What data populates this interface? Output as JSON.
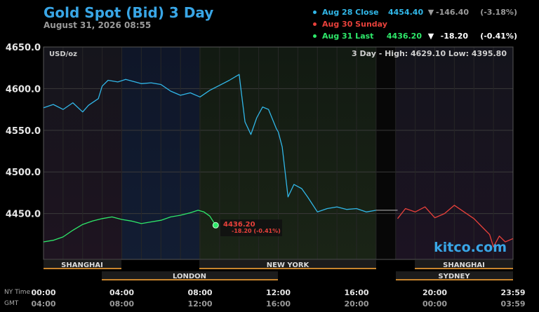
{
  "header": {
    "title": "Gold Spot (Bid) 3 Day",
    "timestamp": "August 31, 2026 08:55"
  },
  "legend": [
    {
      "label": "Aug 28 Close",
      "value": "4454.40",
      "arrow": "▼",
      "change": "-146.40",
      "pct": "(-3.18%)",
      "color": "#31b7e8",
      "text_color": "#31b7e8",
      "num_color": "#9a9a9a"
    },
    {
      "label": "Aug 30 Sunday",
      "value": "",
      "arrow": "",
      "change": "",
      "pct": "",
      "color": "#e8413b",
      "text_color": "#e8413b",
      "num_color": "#9a9a9a"
    },
    {
      "label": "Aug 31 Last",
      "value": "4436.20",
      "arrow": "▼",
      "change": "-18.20",
      "pct": "(-0.41%)",
      "color": "#2ee86a",
      "text_color": "#2ee86a",
      "num_color": "#ffffff"
    }
  ],
  "plot": {
    "unit_label": "USD/oz",
    "range_text": "3 Day - High: 4629.10  Low: 4395.80",
    "watermark": "kitco.com",
    "last_value_label": "4436.20",
    "last_change_label": "-18.20 (-0.41%)"
  },
  "sessions_row1": [
    "SHANGHAI",
    "NEW YORK",
    "SHANGHAI"
  ],
  "sessions_row2": [
    "LONDON",
    "SYDNEY"
  ],
  "time_axis": {
    "ny_label": "NY Time",
    "gmt_label": "GMT",
    "ny_ticks": [
      "00:00",
      "04:00",
      "08:00",
      "12:00",
      "16:00",
      "20:00",
      "23:59"
    ],
    "gmt_ticks": [
      "04:00",
      "08:00",
      "12:00",
      "16:00",
      "20:00",
      "00:00",
      "03:59"
    ]
  },
  "chart_data": {
    "type": "line",
    "title": "Gold Spot (Bid) 3 Day",
    "ylabel": "USD/oz",
    "ylim": [
      4395,
      4650
    ],
    "yticks": [
      "4450.0",
      "4500.0",
      "4550.0",
      "4600.0",
      "4650.0"
    ],
    "xlim": [
      0,
      24
    ],
    "series": [
      {
        "name": "Aug 28 Close",
        "color": "#31b7e8",
        "x": [
          0,
          0.5,
          1,
          1.5,
          2,
          2.3,
          2.8,
          3,
          3.3,
          3.8,
          4.2,
          5,
          5.5,
          6,
          6.5,
          7,
          7.5,
          8,
          8.5,
          9,
          9.5,
          10,
          10.1,
          10.3,
          10.6,
          10.9,
          11.2,
          11.5,
          11.9,
          12,
          12.2,
          12.3,
          12.5,
          12.8,
          13.2,
          13.5,
          14,
          14.5,
          15,
          15.5,
          16,
          16.5,
          17
        ],
        "y": [
          4577,
          4581,
          4575,
          4583,
          4572,
          4580,
          4588,
          4603,
          4610,
          4608,
          4611,
          4606,
          4607,
          4605,
          4597,
          4592,
          4595,
          4590,
          4598,
          4604,
          4610,
          4617,
          4598,
          4560,
          4545,
          4565,
          4578,
          4575,
          4552,
          4548,
          4530,
          4510,
          4470,
          4485,
          4480,
          4470,
          4452,
          4456,
          4458,
          4455,
          4456,
          4452,
          4454
        ]
      },
      {
        "name": "Aug 30 Sunday",
        "color": "#e8413b",
        "x": [
          18.1,
          18.5,
          19,
          19.5,
          20,
          20.5,
          21,
          21.5,
          22,
          22.5,
          22.8,
          23,
          23.3,
          23.6,
          24
        ],
        "y": [
          4444,
          4456,
          4452,
          4458,
          4445,
          4450,
          4460,
          4452,
          4444,
          4432,
          4425,
          4410,
          4423,
          4416,
          4420
        ]
      },
      {
        "name": "Aug 31 Last",
        "color": "#2ee86a",
        "x": [
          0,
          0.5,
          1,
          1.5,
          2,
          2.5,
          3,
          3.5,
          4,
          4.5,
          5,
          5.5,
          6,
          6.5,
          7,
          7.5,
          7.9,
          8.2,
          8.5,
          8.8
        ],
        "y": [
          4416,
          4418,
          4422,
          4430,
          4437,
          4441,
          4444,
          4446,
          4443,
          4441,
          4438,
          4440,
          4442,
          4446,
          4448,
          4451,
          4454,
          4452,
          4447,
          4436
        ]
      }
    ]
  }
}
